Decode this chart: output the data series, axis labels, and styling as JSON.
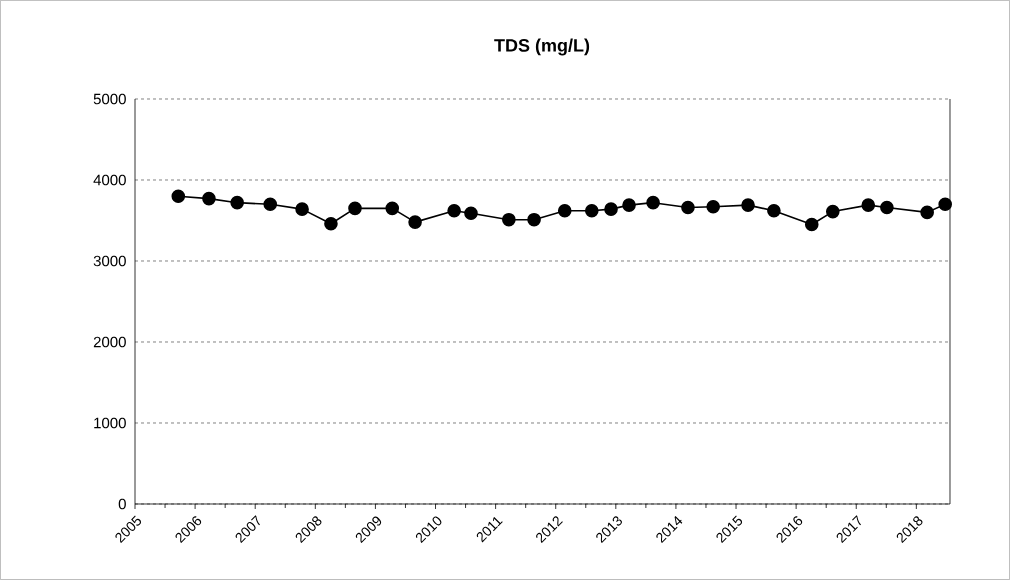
{
  "chart_data": {
    "type": "line",
    "title": "TDS (mg/L)",
    "x": [
      2005.72,
      2006.23,
      2006.7,
      2007.25,
      2007.78,
      2008.26,
      2008.66,
      2009.28,
      2009.66,
      2010.31,
      2010.59,
      2011.22,
      2011.64,
      2012.15,
      2012.6,
      2012.92,
      2013.22,
      2013.62,
      2014.2,
      2014.62,
      2015.2,
      2015.63,
      2016.26,
      2016.61,
      2017.2,
      2017.51,
      2018.18,
      2018.48
    ],
    "series": [
      {
        "color": "#000000",
        "values": [
          3800,
          3770,
          3720,
          3700,
          3640,
          3460,
          3650,
          3650,
          3480,
          3620,
          3590,
          3510,
          3510,
          3620,
          3620,
          3640,
          3690,
          3720,
          3660,
          3670,
          3690,
          3620,
          3450,
          3610,
          3690,
          3660,
          3600,
          3700
        ]
      }
    ],
    "xlim": [
      2005,
      2018.56
    ],
    "ylim": [
      0,
      5000
    ],
    "xticks": [
      2005,
      2006,
      2007,
      2008,
      2009,
      2010,
      2011,
      2012,
      2013,
      2014,
      2015,
      2016,
      2017,
      2018
    ],
    "yticks": [
      0,
      1000,
      2000,
      3000,
      4000,
      5000
    ],
    "grid": "y",
    "marker": "circle",
    "line_style": "solid"
  }
}
